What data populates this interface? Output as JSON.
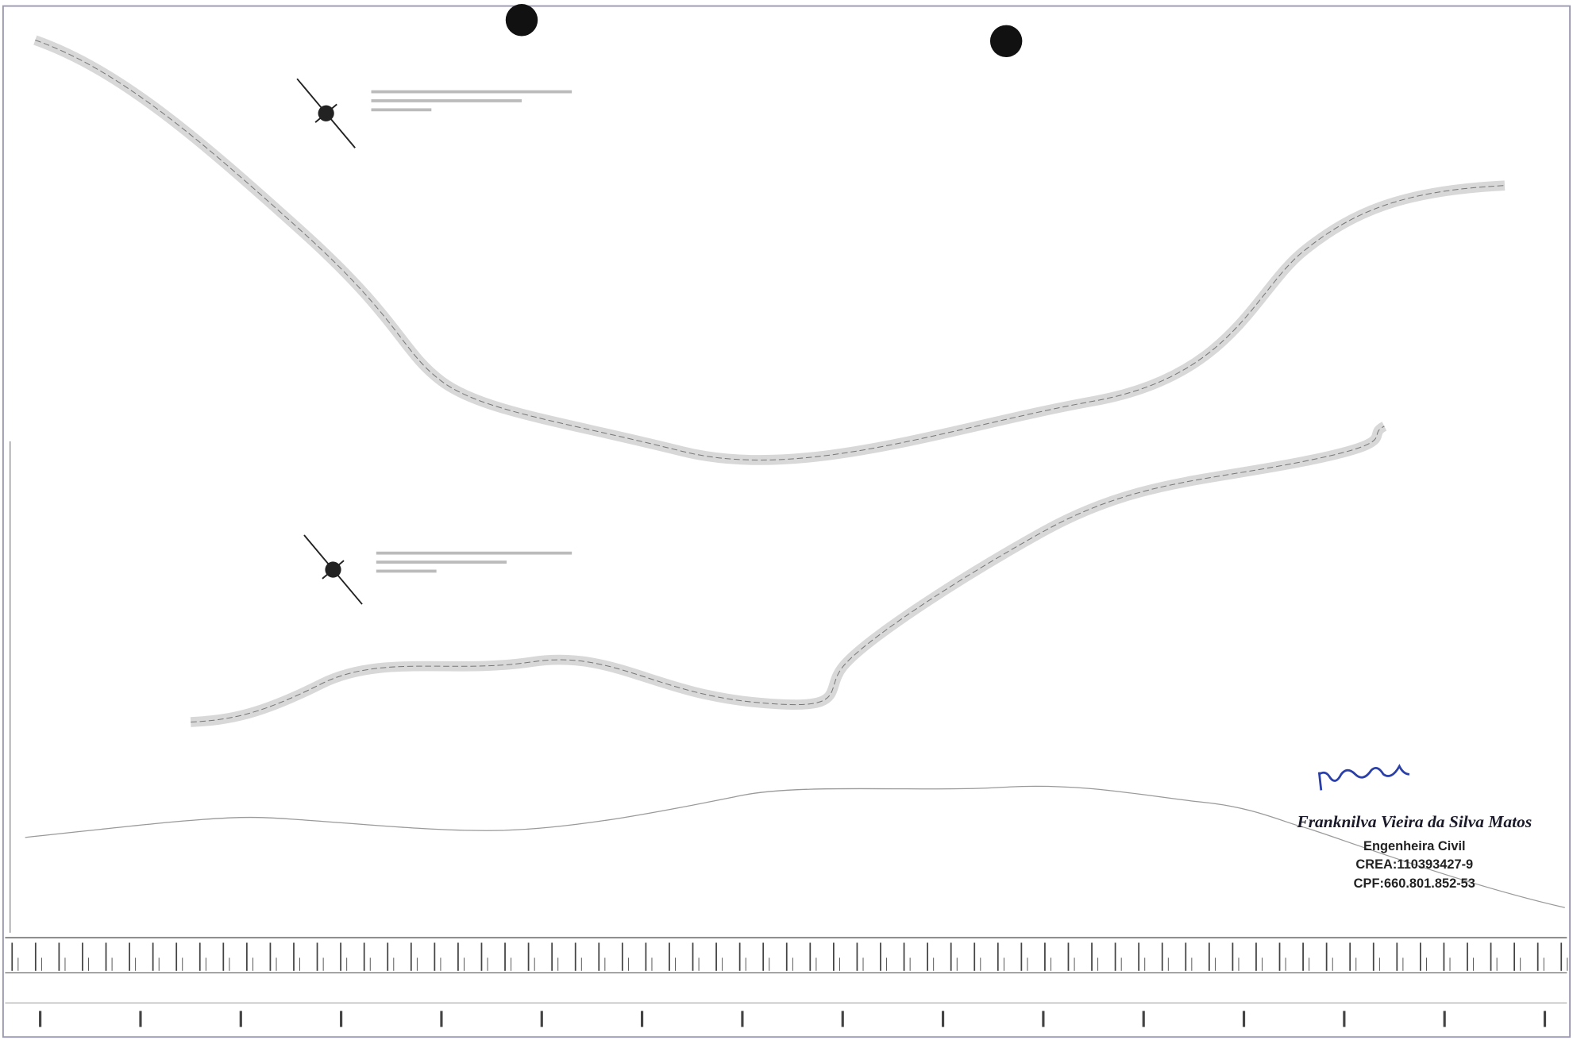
{
  "signature": {
    "name": "Franknilva Vieira da Silva Matos",
    "title": "Engenheira Civil",
    "crea": "CREA:110393427-9",
    "cpf": "CPF:660.801.852-53"
  }
}
